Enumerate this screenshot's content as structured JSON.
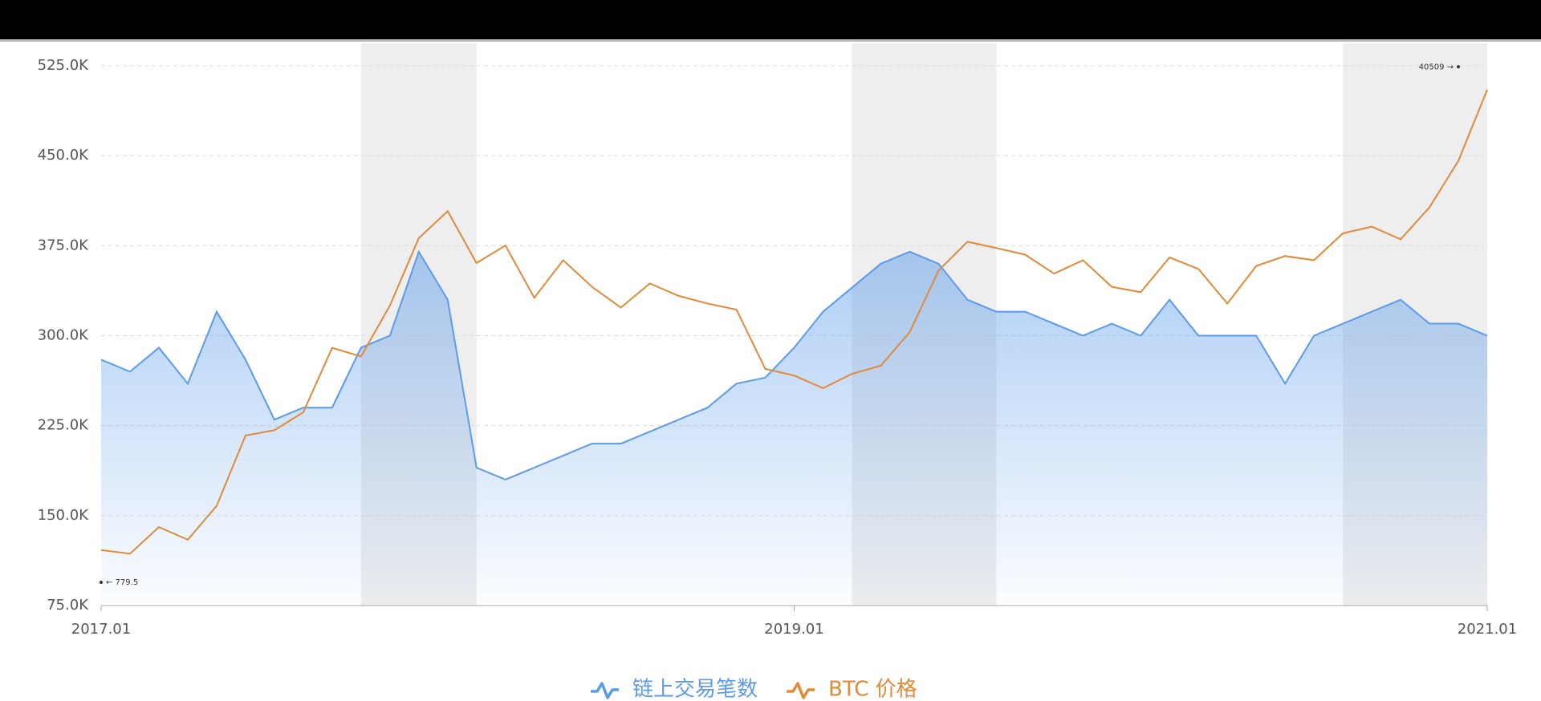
{
  "chart_data": {
    "type": "line",
    "x": [
      "2017.01",
      "2017.02",
      "2017.03",
      "2017.04",
      "2017.05",
      "2017.06",
      "2017.07",
      "2017.08",
      "2017.09",
      "2017.10",
      "2017.11",
      "2017.12",
      "2018.01",
      "2018.02",
      "2018.03",
      "2018.04",
      "2018.05",
      "2018.06",
      "2018.07",
      "2018.08",
      "2018.09",
      "2018.10",
      "2018.11",
      "2018.12",
      "2019.01",
      "2019.02",
      "2019.03",
      "2019.04",
      "2019.05",
      "2019.06",
      "2019.07",
      "2019.08",
      "2019.09",
      "2019.10",
      "2019.11",
      "2019.12",
      "2020.01",
      "2020.02",
      "2020.03",
      "2020.04",
      "2020.05",
      "2020.06",
      "2020.07",
      "2020.08",
      "2020.09",
      "2020.10",
      "2020.11",
      "2020.12",
      "2021.01"
    ],
    "xticks": [
      "2017.01",
      "2019.01",
      "2021.01"
    ],
    "series": [
      {
        "name": "链上交易笔数",
        "color": "#5b9bea",
        "values": [
          280000,
          270000,
          290000,
          260000,
          320000,
          280000,
          230000,
          240000,
          240000,
          290000,
          300000,
          370000,
          330000,
          190000,
          180000,
          190000,
          200000,
          210000,
          210000,
          220000,
          230000,
          240000,
          260000,
          265000,
          290000,
          320000,
          340000,
          360000,
          370000,
          360000,
          330000,
          320000,
          320000,
          310000,
          300000,
          310000,
          300000,
          330000,
          300000,
          300000,
          300000,
          260000,
          300000,
          310000,
          320000,
          330000,
          310000,
          310000,
          300000
        ]
      },
      {
        "name": "BTC 价格",
        "color": "#e08a3a",
        "axis": "y2",
        "values": [
          998,
          970,
          1190,
          1080,
          1400,
          2400,
          2500,
          2870,
          4700,
          4400,
          6500,
          10900,
          13400,
          9000,
          10300,
          6900,
          9200,
          7500,
          6400,
          7700,
          7000,
          6600,
          6300,
          4000,
          3800,
          3450,
          3850,
          4100,
          5300,
          8500,
          10600,
          10100,
          9600,
          8300,
          9200,
          7500,
          7200,
          9400,
          8600,
          6600,
          8800,
          9500,
          9200,
          11300,
          11900,
          10800,
          13800,
          19700,
          34000
        ]
      }
    ],
    "ylim": [
      75000,
      525000
    ],
    "yticks": [
      {
        "value": 75000,
        "label": "75.0K"
      },
      {
        "value": 150000,
        "label": "150.0K"
      },
      {
        "value": 225000,
        "label": "225.0K"
      },
      {
        "value": 300000,
        "label": "300.0K"
      },
      {
        "value": 375000,
        "label": "375.0K"
      },
      {
        "value": 450000,
        "label": "450.0K"
      },
      {
        "value": 525000,
        "label": "525.0K"
      }
    ],
    "y2lim": [
      652,
      40830
    ],
    "y2log": true,
    "grid": true,
    "shaded": [
      {
        "from": "2017.10",
        "to": "2018.02"
      },
      {
        "from": "2019.03",
        "to": "2019.08"
      },
      {
        "from": "2020.08",
        "to": "2021.01"
      }
    ],
    "annotations": [
      {
        "text": "← 779.5",
        "x": "2017.01",
        "value": 779.5,
        "axis": "y2"
      },
      {
        "text": "40509 →",
        "x": "2020.12",
        "value": 40509,
        "axis": "y2"
      }
    ],
    "legend": "bottom"
  }
}
